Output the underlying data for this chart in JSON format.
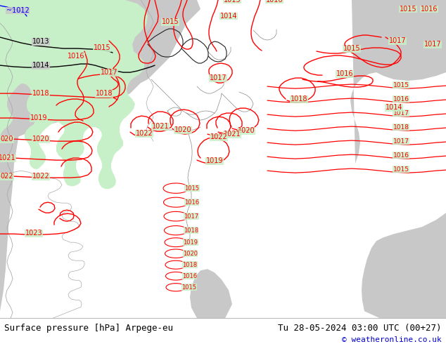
{
  "title_left": "Surface pressure [hPa] Arpege-eu",
  "title_right": "Tu 28-05-2024 03:00 UTC (00+27)",
  "copyright": "© weatheronline.co.uk",
  "bg_green": "#c8f0c8",
  "bg_gray": "#c8c8c8",
  "bg_white": "#ffffff",
  "line_red": "#ff0000",
  "line_blue": "#0000ff",
  "line_dark_gray": "#888888",
  "line_black": "#000000",
  "text_black": "#000000",
  "text_blue": "#0000cc",
  "footer_font_size": 9,
  "copyright_font_size": 8
}
